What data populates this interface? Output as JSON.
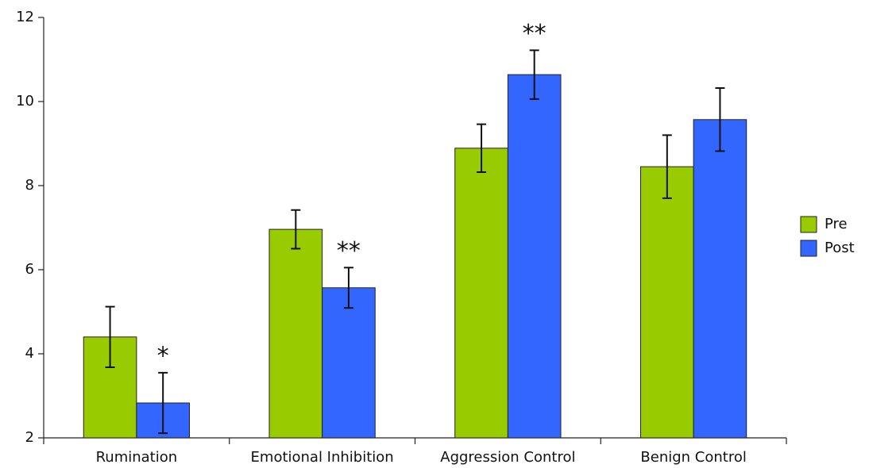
{
  "chart_data": {
    "type": "bar",
    "categories": [
      "Rumination",
      "Emotional Inhibition",
      "Aggression Control",
      "Benign Control"
    ],
    "series": [
      {
        "name": "Pre",
        "color": "#99cc00",
        "values": [
          4.4,
          6.96,
          8.89,
          8.45
        ],
        "errors": [
          0.72,
          0.46,
          0.57,
          0.75
        ]
      },
      {
        "name": "Post",
        "color": "#3366ff",
        "values": [
          2.83,
          5.57,
          10.64,
          9.57
        ],
        "errors": [
          0.72,
          0.48,
          0.58,
          0.75
        ],
        "annotations": [
          "*",
          "**",
          "**",
          null
        ]
      }
    ],
    "ylim": [
      2,
      12
    ],
    "yticks": [
      2,
      4,
      6,
      8,
      10,
      12
    ],
    "legend": "right"
  }
}
